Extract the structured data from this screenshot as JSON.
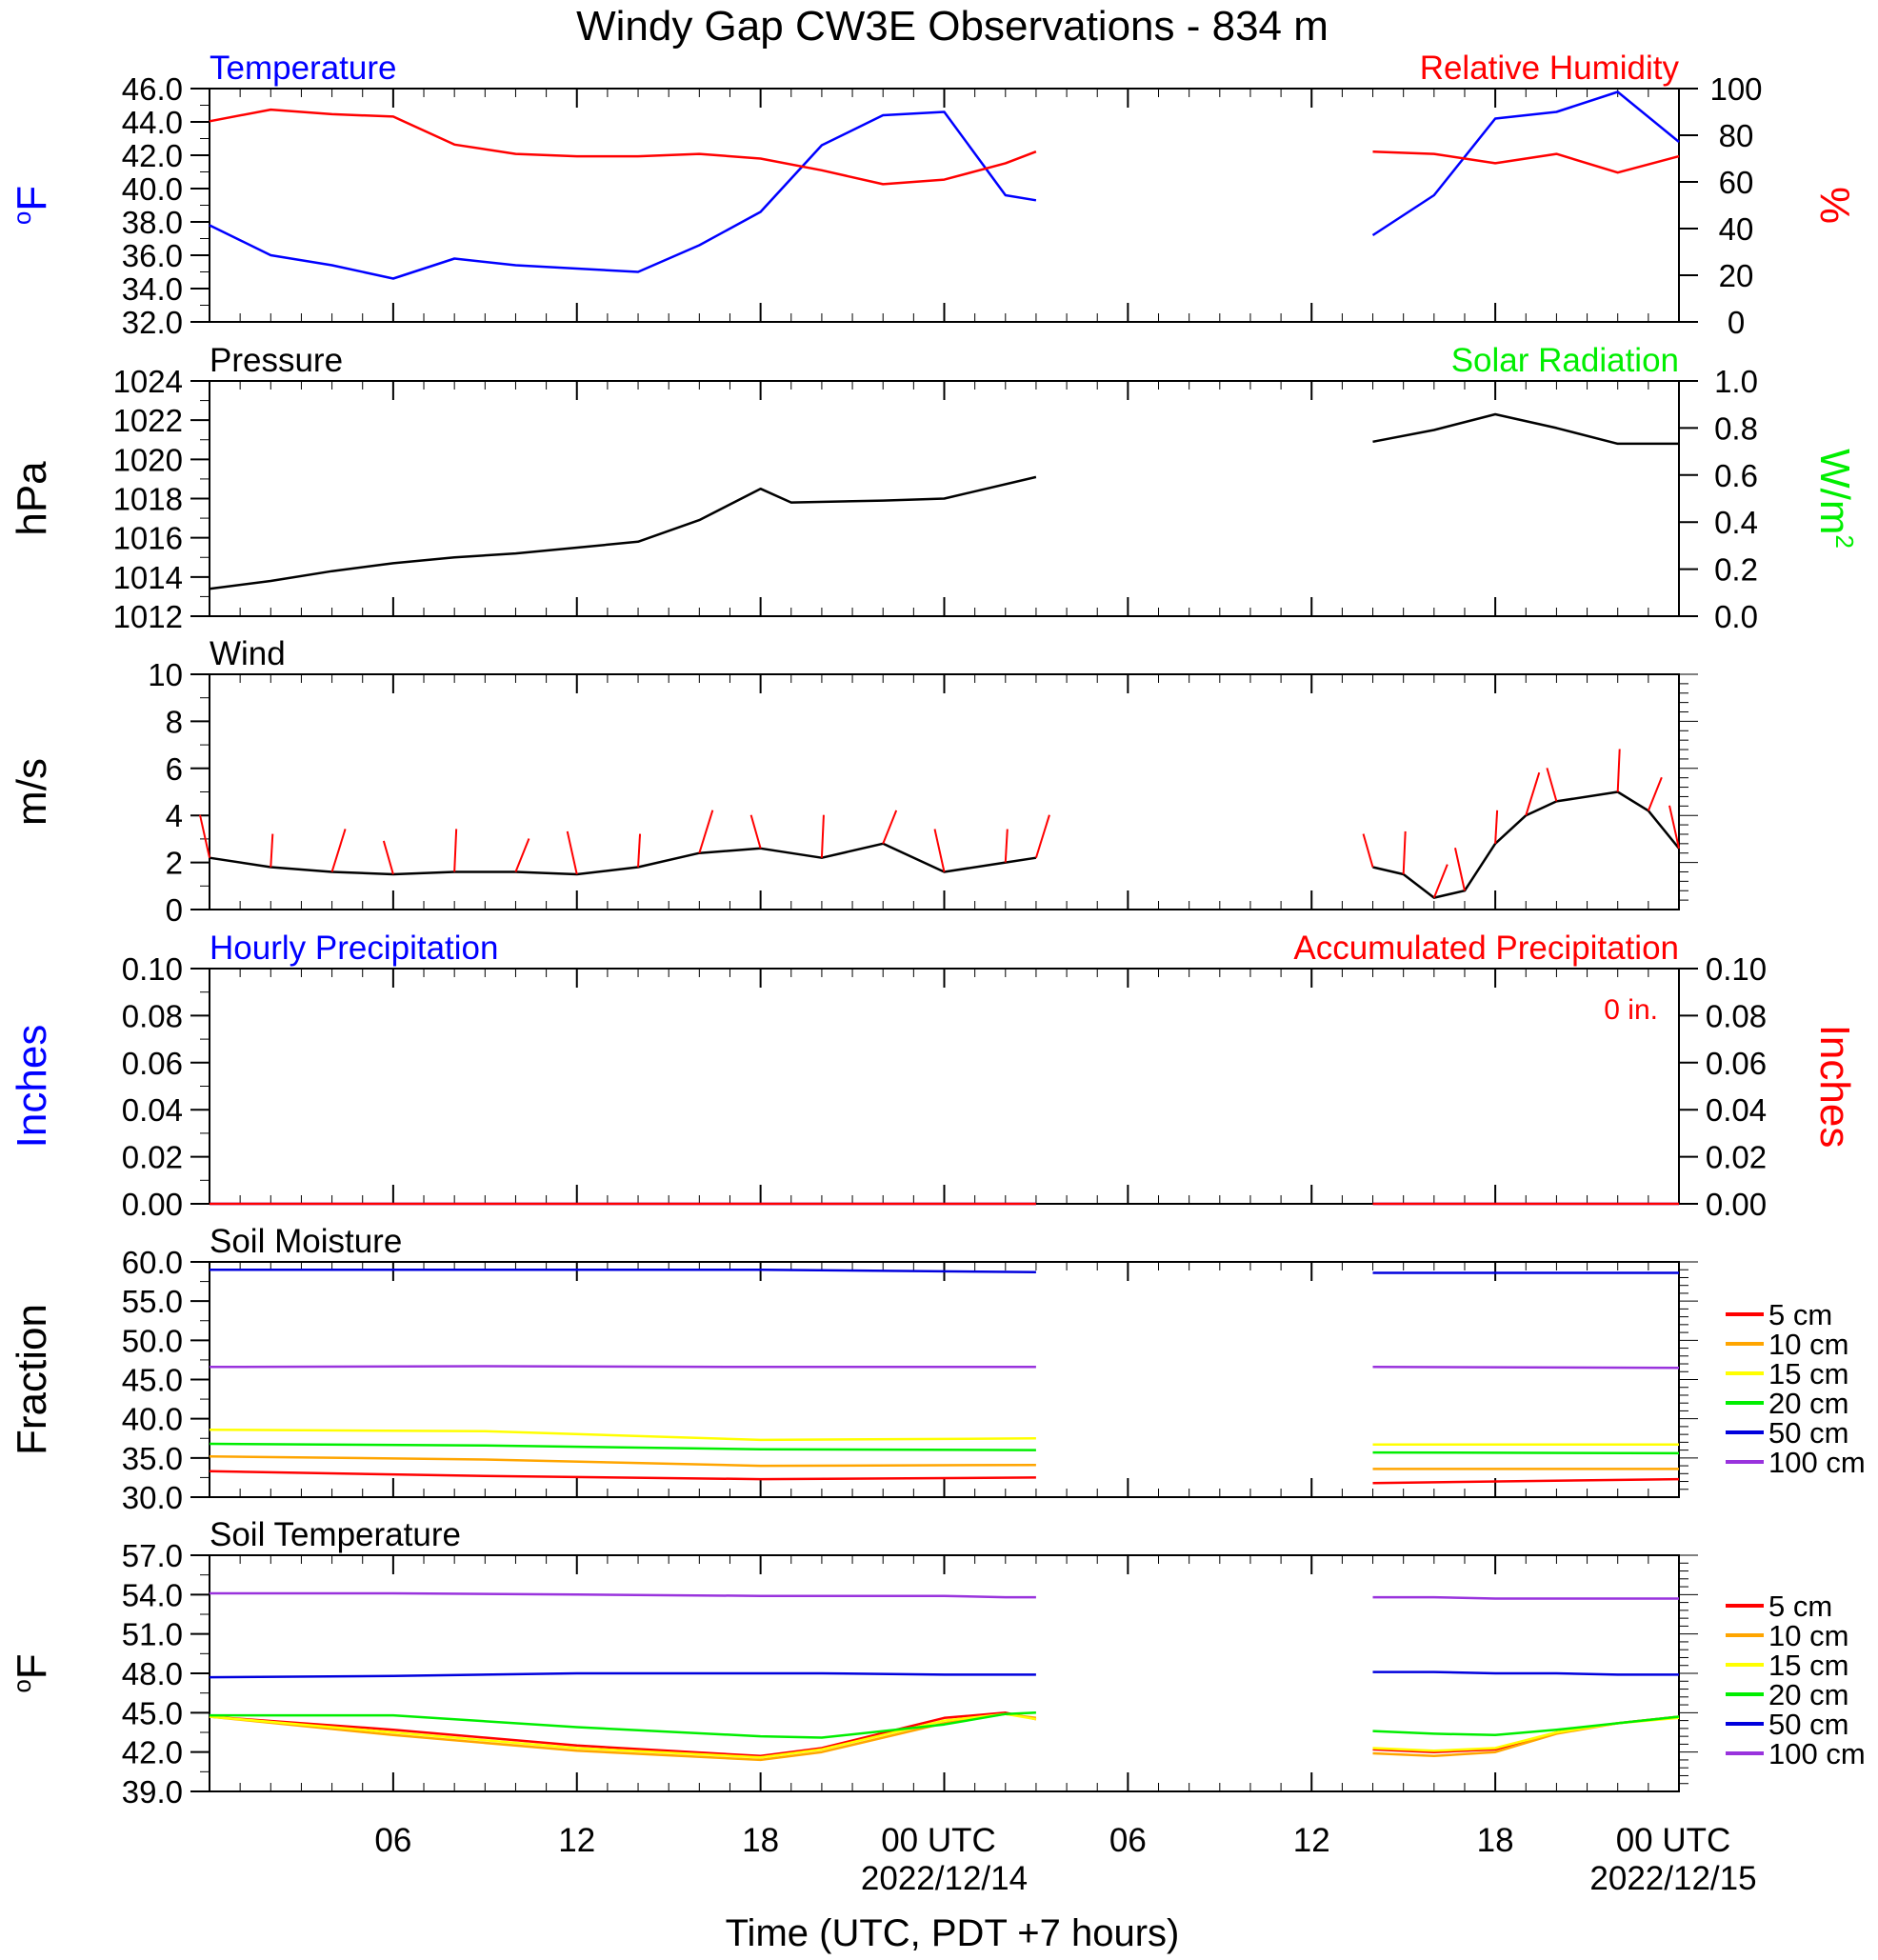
{
  "title": "Windy Gap CW3E Observations - 834 m",
  "x_axis": {
    "label": "Time (UTC, PDT +7 hours)",
    "tick_labels": [
      "06",
      "12",
      "18",
      "00 UTC",
      "06",
      "12",
      "18",
      "00 UTC"
    ],
    "date_labels": [
      "2022/12/14",
      "2022/12/15"
    ]
  },
  "colors": {
    "temperature": "#0000ff",
    "relative_humidity": "#ff0000",
    "pressure": "#000000",
    "solar_radiation": "#00ee00",
    "wind_speed": "#000000",
    "wind_barbs": "#ff0000",
    "precip_hourly": "#0000ff",
    "precip_accum": "#ff0000",
    "depth_5cm": "#ff0000",
    "depth_10cm": "#ffa500",
    "depth_15cm": "#ffff00",
    "depth_20cm": "#00ee00",
    "depth_50cm": "#0000dd",
    "depth_100cm": "#9933dd"
  },
  "chart_data": [
    {
      "type": "line",
      "panel": "temperature_humidity",
      "left_title": "Temperature",
      "right_title": "Relative Humidity",
      "ylabel_left": "oF",
      "ylabel_right": "%",
      "ylim_left": [
        32.0,
        46.0
      ],
      "ylim_right": [
        0,
        100
      ],
      "ytick_labels_left": [
        "32.0",
        "34.0",
        "36.0",
        "38.0",
        "40.0",
        "42.0",
        "44.0",
        "46.0"
      ],
      "ytick_labels_right": [
        "0",
        "20",
        "40",
        "60",
        "80",
        "100"
      ],
      "x_hours": [
        0,
        2,
        4,
        6,
        8,
        10,
        12,
        14,
        16,
        18,
        20,
        22,
        24,
        26,
        27,
        38,
        40,
        42,
        44,
        46,
        48
      ],
      "series": [
        {
          "name": "Temperature",
          "axis": "left",
          "color_key": "temperature",
          "values": [
            37.8,
            36.0,
            35.4,
            34.6,
            35.8,
            35.4,
            35.2,
            35.0,
            36.6,
            38.6,
            42.6,
            44.4,
            44.6,
            39.6,
            39.3,
            37.2,
            39.6,
            44.2,
            44.6,
            45.8,
            42.8
          ]
        },
        {
          "name": "Relative Humidity",
          "axis": "right",
          "color_key": "relative_humidity",
          "values": [
            86,
            91,
            89,
            88,
            76,
            72,
            71,
            71,
            72,
            70,
            65,
            59,
            61,
            68,
            73,
            73,
            72,
            68,
            72,
            64,
            71
          ]
        }
      ]
    },
    {
      "type": "line",
      "panel": "pressure_solar",
      "left_title": "Pressure",
      "right_title": "Solar Radiation",
      "ylabel_left": "hPa",
      "ylabel_right": "W/m",
      "ylabel_right_sup": "2",
      "ylim_left": [
        1012,
        1024
      ],
      "ylim_right": [
        0.0,
        1.0
      ],
      "ytick_labels_left": [
        "1012",
        "1014",
        "1016",
        "1018",
        "1020",
        "1022",
        "1024"
      ],
      "ytick_labels_right": [
        "0.0",
        "0.2",
        "0.4",
        "0.6",
        "0.8",
        "1.0"
      ],
      "x_hours": [
        0,
        2,
        4,
        6,
        8,
        10,
        12,
        14,
        16,
        18,
        19,
        22,
        24,
        27,
        38,
        40,
        42,
        44,
        46,
        48
      ],
      "series": [
        {
          "name": "Pressure",
          "axis": "left",
          "color_key": "pressure",
          "values": [
            1013.4,
            1013.8,
            1014.3,
            1014.7,
            1015.0,
            1015.2,
            1015.5,
            1015.8,
            1016.9,
            1018.5,
            1017.8,
            1017.9,
            1018.0,
            1019.1,
            1020.9,
            1021.5,
            1022.3,
            1021.6,
            1020.8,
            1020.8
          ]
        }
      ]
    },
    {
      "type": "line",
      "panel": "wind",
      "left_title": "Wind",
      "ylabel_left": "m/s",
      "ylim_left": [
        0,
        10
      ],
      "ytick_labels_left": [
        "0",
        "2",
        "4",
        "6",
        "8",
        "10"
      ],
      "x_hours": [
        0,
        2,
        4,
        6,
        8,
        10,
        12,
        14,
        16,
        18,
        20,
        22,
        24,
        26,
        27,
        38,
        39,
        40,
        41,
        42,
        43,
        44,
        46,
        47,
        48
      ],
      "series": [
        {
          "name": "Wind",
          "axis": "left",
          "color_key": "wind_speed",
          "values": [
            2.2,
            1.8,
            1.6,
            1.5,
            1.6,
            1.6,
            1.5,
            1.8,
            2.4,
            2.6,
            2.2,
            2.8,
            1.6,
            2.0,
            2.2,
            1.8,
            1.5,
            0.5,
            0.8,
            2.8,
            4.0,
            4.6,
            5.0,
            4.2,
            2.6
          ]
        }
      ]
    },
    {
      "type": "line",
      "panel": "precipitation",
      "left_title": "Hourly Precipitation",
      "right_title": "Accumulated Precipitation",
      "annotation": "0 in.",
      "ylabel_left": "Inches",
      "ylabel_right": "Inches",
      "ylim_left": [
        0.0,
        0.1
      ],
      "ylim_right": [
        0.0,
        0.1
      ],
      "ytick_labels_left": [
        "0.00",
        "0.02",
        "0.04",
        "0.06",
        "0.08",
        "0.10"
      ],
      "ytick_labels_right": [
        "0.00",
        "0.02",
        "0.04",
        "0.06",
        "0.08",
        "0.10"
      ],
      "x_hours": [
        0,
        27,
        38,
        48
      ],
      "series": [
        {
          "name": "Hourly Precipitation",
          "axis": "left",
          "color_key": "precip_hourly",
          "values": [
            0.0,
            0.0,
            0.0,
            0.0
          ]
        },
        {
          "name": "Accumulated Precipitation",
          "axis": "right",
          "color_key": "precip_accum",
          "values": [
            0.0,
            0.0,
            0.0,
            0.0
          ]
        }
      ]
    },
    {
      "type": "line",
      "panel": "soil_moisture",
      "left_title": "Soil Moisture",
      "ylabel_left": "Fraction",
      "ylim_left": [
        30.0,
        60.0
      ],
      "ytick_labels_left": [
        "30.0",
        "35.0",
        "40.0",
        "45.0",
        "50.0",
        "55.0",
        "60.0"
      ],
      "legend": [
        "5 cm",
        "10 cm",
        "15 cm",
        "20 cm",
        "50 cm",
        "100 cm"
      ],
      "x_hours": [
        0,
        9,
        18,
        27,
        38,
        48
      ],
      "series": [
        {
          "name": "5 cm",
          "color_key": "depth_5cm",
          "values": [
            33.3,
            32.7,
            32.3,
            32.5,
            31.8,
            32.3
          ]
        },
        {
          "name": "10 cm",
          "color_key": "depth_10cm",
          "values": [
            35.2,
            34.8,
            34.0,
            34.1,
            33.6,
            33.6
          ]
        },
        {
          "name": "15 cm",
          "color_key": "depth_15cm",
          "values": [
            38.6,
            38.4,
            37.3,
            37.5,
            36.7,
            36.7
          ]
        },
        {
          "name": "20 cm",
          "color_key": "depth_20cm",
          "values": [
            36.8,
            36.6,
            36.1,
            36.0,
            35.7,
            35.6
          ]
        },
        {
          "name": "50 cm",
          "color_key": "depth_50cm",
          "values": [
            59.0,
            59.0,
            59.0,
            58.7,
            58.6,
            58.6
          ]
        },
        {
          "name": "100 cm",
          "color_key": "depth_100cm",
          "values": [
            46.6,
            46.7,
            46.6,
            46.6,
            46.6,
            46.5
          ]
        }
      ]
    },
    {
      "type": "line",
      "panel": "soil_temperature",
      "left_title": "Soil Temperature",
      "ylabel_left": "oF",
      "ylim_left": [
        39.0,
        57.0
      ],
      "ytick_labels_left": [
        "39.0",
        "42.0",
        "45.0",
        "48.0",
        "51.0",
        "54.0",
        "57.0"
      ],
      "legend": [
        "5 cm",
        "10 cm",
        "15 cm",
        "20 cm",
        "50 cm",
        "100 cm"
      ],
      "x_hours": [
        0,
        6,
        12,
        18,
        20,
        24,
        26,
        27,
        38,
        40,
        42,
        44,
        46,
        48
      ],
      "series": [
        {
          "name": "5 cm",
          "color_key": "depth_5cm",
          "values": [
            44.7,
            43.7,
            42.5,
            41.7,
            42.3,
            44.6,
            45.0,
            44.5,
            42.2,
            42.0,
            42.2,
            43.5,
            44.2,
            44.7
          ]
        },
        {
          "name": "10 cm",
          "color_key": "depth_10cm",
          "values": [
            44.7,
            43.3,
            42.1,
            41.4,
            42.0,
            44.2,
            44.9,
            44.6,
            41.9,
            41.7,
            42.0,
            43.4,
            44.2,
            44.7
          ]
        },
        {
          "name": "15 cm",
          "color_key": "depth_15cm",
          "values": [
            44.7,
            43.5,
            42.3,
            41.6,
            42.2,
            44.4,
            44.9,
            44.5,
            42.3,
            42.1,
            42.3,
            43.5,
            44.2,
            44.6
          ]
        },
        {
          "name": "20 cm",
          "color_key": "depth_20cm",
          "values": [
            44.8,
            44.8,
            43.9,
            43.2,
            43.1,
            44.1,
            44.9,
            45.0,
            43.6,
            43.4,
            43.3,
            43.7,
            44.2,
            44.7
          ]
        },
        {
          "name": "50 cm",
          "color_key": "depth_50cm",
          "values": [
            47.7,
            47.8,
            48.0,
            48.0,
            48.0,
            47.9,
            47.9,
            47.9,
            48.1,
            48.1,
            48.0,
            48.0,
            47.9,
            47.9
          ]
        },
        {
          "name": "100 cm",
          "color_key": "depth_100cm",
          "values": [
            54.1,
            54.1,
            54.0,
            53.9,
            53.9,
            53.9,
            53.8,
            53.8,
            53.8,
            53.8,
            53.7,
            53.7,
            53.7,
            53.7
          ]
        }
      ]
    }
  ]
}
